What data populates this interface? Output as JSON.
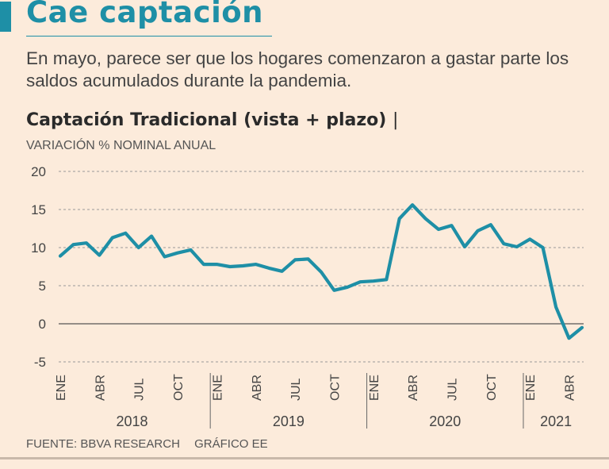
{
  "header": {
    "title": "Cae captación",
    "subtitle": "En mayo, parece ser que los hogares comenzaron a gastar parte los saldos acumulados durante la pandemia."
  },
  "chart_header": {
    "title": "Captación Tradicional (vista + plazo)",
    "separator": "|",
    "units": "VARIACIÓN % NOMINAL ANUAL"
  },
  "footer": {
    "source": "FUENTE: BBVA RESEARCH",
    "credit": "GRÁFICO EE"
  },
  "colors": {
    "accent": "#1e8fa6",
    "line": "#1e8fa6",
    "background": "#fcebdb"
  },
  "chart_data": {
    "type": "line",
    "title": "Captación Tradicional (vista + plazo)",
    "ylabel": "VARIACIÓN % NOMINAL ANUAL",
    "xlabel": "",
    "ylim": [
      -5,
      20
    ],
    "yticks": [
      20,
      15,
      10,
      5,
      0,
      -5
    ],
    "grid": true,
    "month_ticks": [
      {
        "index": 0,
        "label": "ENE"
      },
      {
        "index": 3,
        "label": "ABR"
      },
      {
        "index": 6,
        "label": "JUL"
      },
      {
        "index": 9,
        "label": "OCT"
      },
      {
        "index": 12,
        "label": "ENE"
      },
      {
        "index": 15,
        "label": "ABR"
      },
      {
        "index": 18,
        "label": "JUL"
      },
      {
        "index": 21,
        "label": "OCT"
      },
      {
        "index": 24,
        "label": "ENE"
      },
      {
        "index": 27,
        "label": "ABR"
      },
      {
        "index": 30,
        "label": "JUL"
      },
      {
        "index": 33,
        "label": "OCT"
      },
      {
        "index": 36,
        "label": "ENE"
      },
      {
        "index": 39,
        "label": "ABR"
      }
    ],
    "years": [
      {
        "label": "2018",
        "start": 0,
        "end": 11
      },
      {
        "label": "2019",
        "start": 12,
        "end": 23
      },
      {
        "label": "2020",
        "start": 24,
        "end": 35
      },
      {
        "label": "2021",
        "start": 36,
        "end": 40
      }
    ],
    "series": [
      {
        "name": "Captación Tradicional",
        "x_start": "2018-01",
        "values": [
          8.9,
          10.4,
          10.6,
          9.0,
          11.3,
          11.9,
          10.0,
          11.5,
          8.8,
          9.3,
          9.7,
          7.8,
          7.8,
          7.5,
          7.6,
          7.8,
          7.3,
          6.9,
          8.4,
          8.5,
          6.8,
          4.4,
          4.8,
          5.5,
          5.6,
          5.8,
          13.8,
          15.6,
          13.8,
          12.4,
          12.9,
          10.1,
          12.2,
          13.0,
          10.5,
          10.1,
          11.1,
          10.0,
          2.2,
          -1.9,
          -0.5
        ]
      }
    ]
  }
}
